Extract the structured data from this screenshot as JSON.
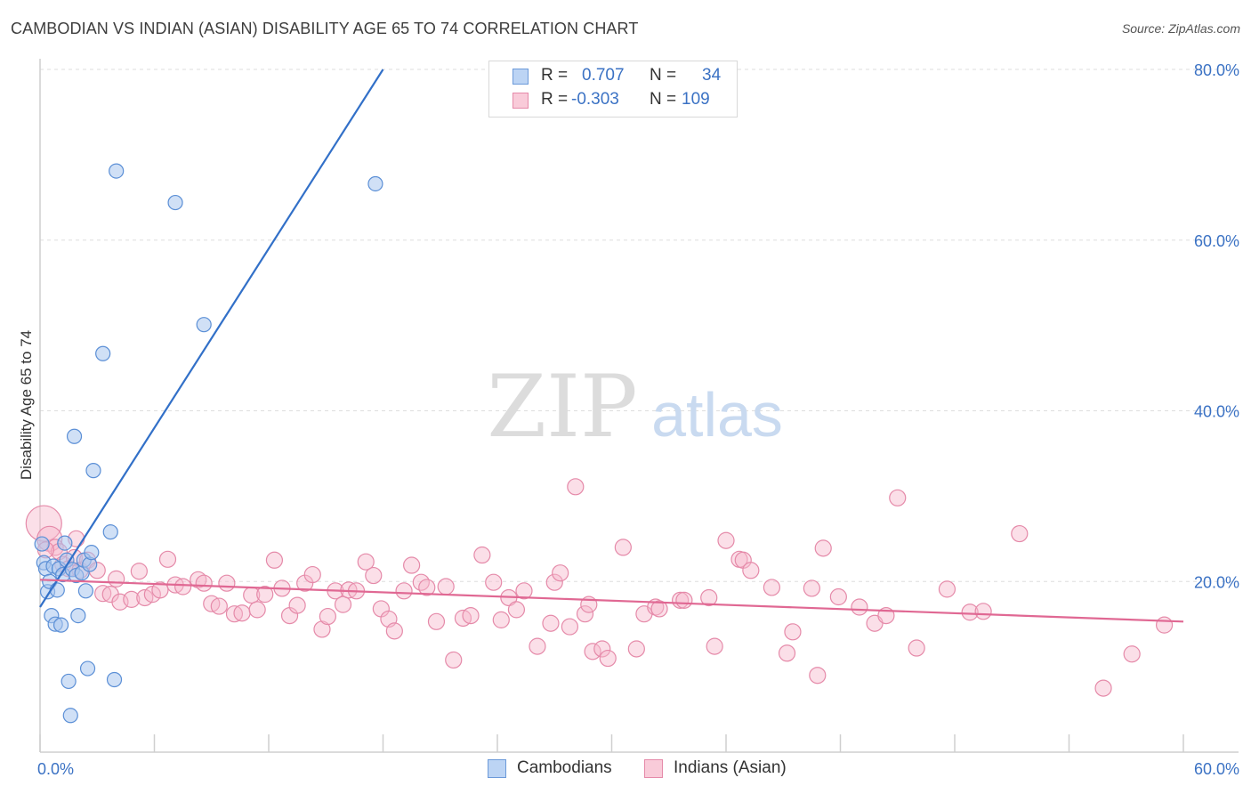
{
  "title": "CAMBODIAN VS INDIAN (ASIAN) DISABILITY AGE 65 TO 74 CORRELATION CHART",
  "source": "Source: ZipAtlas.com",
  "watermark": {
    "zip": "ZIP",
    "atlas": "atlas"
  },
  "legend": {
    "series1": {
      "r_label": "R =",
      "r_value": "0.707",
      "n_label": "N =",
      "n_value": "34"
    },
    "series2": {
      "r_label": "R =",
      "r_value": "-0.303",
      "n_label": "N =",
      "n_value": "109"
    }
  },
  "bottom_legend": {
    "series1": "Cambodians",
    "series2": "Indians (Asian)"
  },
  "colors": {
    "blue_fill": "#a9c6ef",
    "blue_stroke": "#5b8fd6",
    "blue_line": "#3270c8",
    "pink_fill": "#f6b8cb",
    "pink_stroke": "#e58aa9",
    "pink_line": "#e06893",
    "axis_text": "#3b72c4",
    "grid": "#dddddd"
  },
  "chart_data": {
    "type": "scatter",
    "xlabel": "",
    "ylabel": "Disability Age 65 to 74",
    "xlim": [
      0,
      60
    ],
    "ylim": [
      0,
      80
    ],
    "x_tick_labels": [
      "0.0%",
      "60.0%"
    ],
    "y_tick_labels": [
      "20.0%",
      "40.0%",
      "60.0%",
      "80.0%"
    ],
    "y_ticks": [
      20,
      40,
      60,
      80
    ],
    "series": [
      {
        "name": "Cambodians",
        "color": "blue",
        "points": [
          [
            0.2,
            22.2
          ],
          [
            0.3,
            21.5
          ],
          [
            0.4,
            18.8
          ],
          [
            0.5,
            20.0
          ],
          [
            0.6,
            16.0
          ],
          [
            0.7,
            21.8
          ],
          [
            0.8,
            15.0
          ],
          [
            0.9,
            19.0
          ],
          [
            1.0,
            21.5
          ],
          [
            1.1,
            14.9
          ],
          [
            1.2,
            20.8
          ],
          [
            1.3,
            24.5
          ],
          [
            1.4,
            22.5
          ],
          [
            1.5,
            8.3
          ],
          [
            1.6,
            4.3
          ],
          [
            1.7,
            21.4
          ],
          [
            1.8,
            37.0
          ],
          [
            1.9,
            20.7
          ],
          [
            2.0,
            16.0
          ],
          [
            2.2,
            21.0
          ],
          [
            2.3,
            22.5
          ],
          [
            2.4,
            18.9
          ],
          [
            2.5,
            9.8
          ],
          [
            2.6,
            22.0
          ],
          [
            2.7,
            23.4
          ],
          [
            2.8,
            33.0
          ],
          [
            3.3,
            46.7
          ],
          [
            3.7,
            25.8
          ],
          [
            3.9,
            8.5
          ],
          [
            4.0,
            68.1
          ],
          [
            7.1,
            64.4
          ],
          [
            8.6,
            50.1
          ],
          [
            17.6,
            66.6
          ],
          [
            0.1,
            24.4
          ]
        ],
        "trend": [
          [
            0.0,
            17.0
          ],
          [
            18.0,
            80.0
          ]
        ]
      },
      {
        "name": "Indians (Asian)",
        "color": "pink",
        "points": [
          [
            0.2,
            26.8
          ],
          [
            0.5,
            25.0
          ],
          [
            0.8,
            24.0
          ],
          [
            1.0,
            23.5
          ],
          [
            1.2,
            22.0
          ],
          [
            1.5,
            21.5
          ],
          [
            1.8,
            22.8
          ],
          [
            2.1,
            21.3
          ],
          [
            2.5,
            22.5
          ],
          [
            3.0,
            21.3
          ],
          [
            3.3,
            18.6
          ],
          [
            3.7,
            18.5
          ],
          [
            4.0,
            20.3
          ],
          [
            4.2,
            17.6
          ],
          [
            4.8,
            17.9
          ],
          [
            5.2,
            21.2
          ],
          [
            5.5,
            18.1
          ],
          [
            5.9,
            18.5
          ],
          [
            6.3,
            19.0
          ],
          [
            6.7,
            22.6
          ],
          [
            7.1,
            19.6
          ],
          [
            7.5,
            19.4
          ],
          [
            8.3,
            20.2
          ],
          [
            8.6,
            19.8
          ],
          [
            9.0,
            17.4
          ],
          [
            9.4,
            17.1
          ],
          [
            9.8,
            19.8
          ],
          [
            10.2,
            16.2
          ],
          [
            10.6,
            16.3
          ],
          [
            11.1,
            18.4
          ],
          [
            11.4,
            16.7
          ],
          [
            11.8,
            18.5
          ],
          [
            12.3,
            22.5
          ],
          [
            12.7,
            19.2
          ],
          [
            13.1,
            16.0
          ],
          [
            13.5,
            17.2
          ],
          [
            13.9,
            19.8
          ],
          [
            14.3,
            20.8
          ],
          [
            14.8,
            14.4
          ],
          [
            15.1,
            15.9
          ],
          [
            15.5,
            18.9
          ],
          [
            15.9,
            17.3
          ],
          [
            16.2,
            19.0
          ],
          [
            16.6,
            18.9
          ],
          [
            17.1,
            22.3
          ],
          [
            17.5,
            20.7
          ],
          [
            17.9,
            16.8
          ],
          [
            18.3,
            15.6
          ],
          [
            18.6,
            14.2
          ],
          [
            19.1,
            18.9
          ],
          [
            19.5,
            21.9
          ],
          [
            20.0,
            19.9
          ],
          [
            20.3,
            19.3
          ],
          [
            20.8,
            15.3
          ],
          [
            21.3,
            19.4
          ],
          [
            21.7,
            10.8
          ],
          [
            22.2,
            15.7
          ],
          [
            22.6,
            16.0
          ],
          [
            23.2,
            23.1
          ],
          [
            23.8,
            19.9
          ],
          [
            24.2,
            15.5
          ],
          [
            24.6,
            18.1
          ],
          [
            25.4,
            18.9
          ],
          [
            25.0,
            16.7
          ],
          [
            26.1,
            12.4
          ],
          [
            26.8,
            15.1
          ],
          [
            27.0,
            19.9
          ],
          [
            27.3,
            21.0
          ],
          [
            27.8,
            14.7
          ],
          [
            28.1,
            31.1
          ],
          [
            28.6,
            16.2
          ],
          [
            28.8,
            17.3
          ],
          [
            29.0,
            11.8
          ],
          [
            29.5,
            12.1
          ],
          [
            29.8,
            11.0
          ],
          [
            30.6,
            24.0
          ],
          [
            31.3,
            12.1
          ],
          [
            31.7,
            16.2
          ],
          [
            32.3,
            17.0
          ],
          [
            32.5,
            16.8
          ],
          [
            33.6,
            17.8
          ],
          [
            33.8,
            17.8
          ],
          [
            35.1,
            18.1
          ],
          [
            35.4,
            12.4
          ],
          [
            36.0,
            24.8
          ],
          [
            36.7,
            22.6
          ],
          [
            36.9,
            22.5
          ],
          [
            37.3,
            21.3
          ],
          [
            38.4,
            19.3
          ],
          [
            39.2,
            11.6
          ],
          [
            39.5,
            14.1
          ],
          [
            40.5,
            19.2
          ],
          [
            40.8,
            9.0
          ],
          [
            41.1,
            23.9
          ],
          [
            41.9,
            18.2
          ],
          [
            43.0,
            17.0
          ],
          [
            43.8,
            15.1
          ],
          [
            44.4,
            16.0
          ],
          [
            45.0,
            29.8
          ],
          [
            46.0,
            12.2
          ],
          [
            47.6,
            19.1
          ],
          [
            48.8,
            16.4
          ],
          [
            49.5,
            16.5
          ],
          [
            51.4,
            25.6
          ],
          [
            55.8,
            7.5
          ],
          [
            57.3,
            11.5
          ],
          [
            59.0,
            14.9
          ],
          [
            0.3,
            23.7
          ],
          [
            1.9,
            25.0
          ]
        ],
        "trend": [
          [
            0.0,
            20.2
          ],
          [
            60.0,
            15.3
          ]
        ]
      }
    ]
  }
}
